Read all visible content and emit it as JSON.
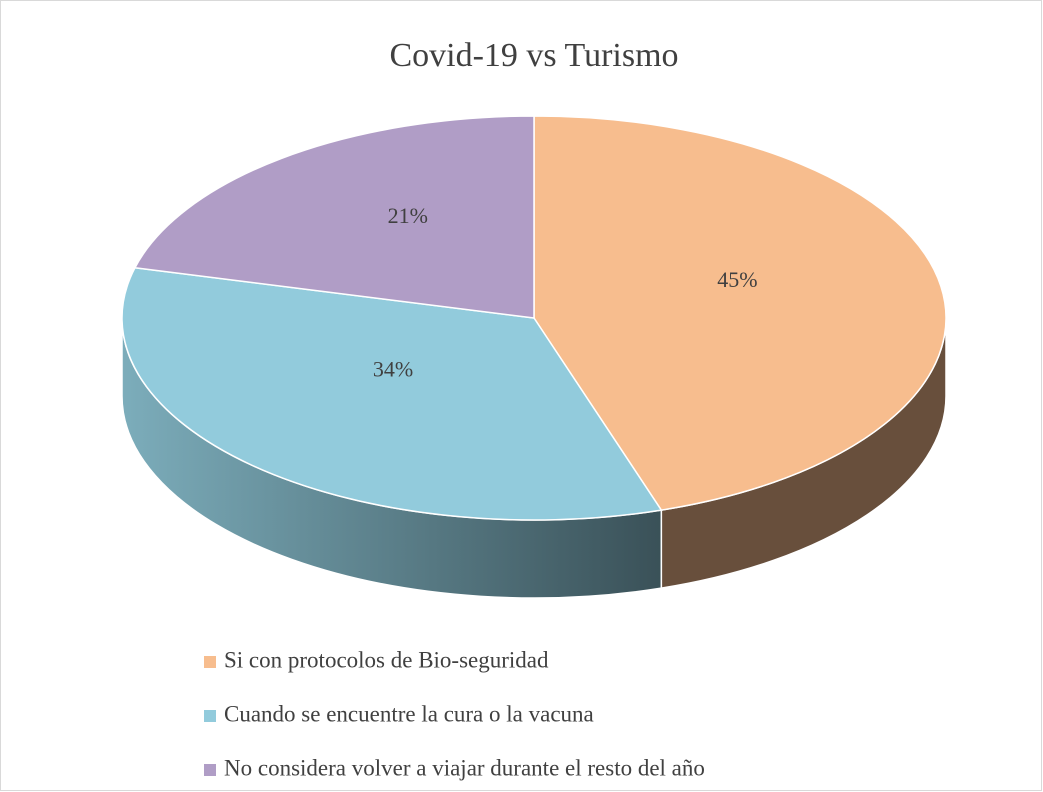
{
  "chart_data": {
    "type": "pie3d",
    "title": "Covid-19 vs Turismo",
    "categories": [
      "Si con protocolos de Bio-seguridad",
      "Cuando se encuentre la cura o la vacuna",
      "No considera volver a viajar durante el resto del año"
    ],
    "values": [
      45,
      34,
      21
    ],
    "value_labels": [
      "45%",
      "34%",
      "21%"
    ],
    "colors": [
      "#f7bd8e",
      "#92cbdc",
      "#b09dc6"
    ],
    "legend": "bottom"
  }
}
